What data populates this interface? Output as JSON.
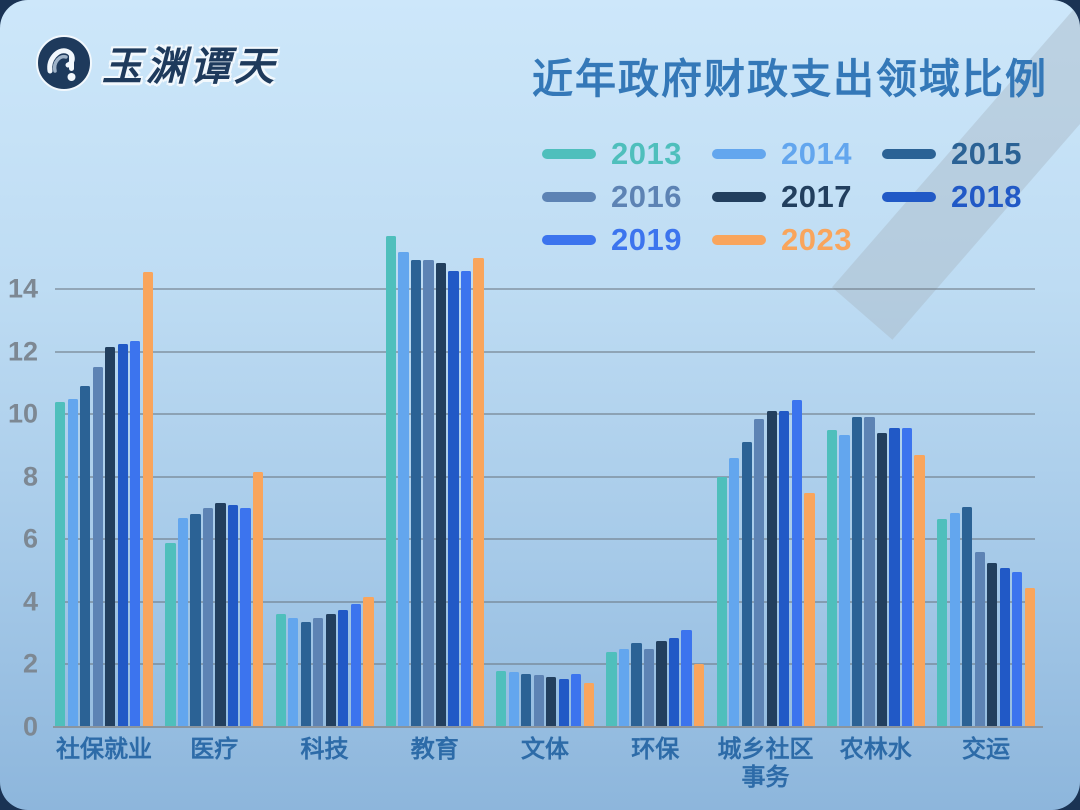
{
  "page": {
    "logo_text": "玉渊谭天",
    "title": "近年政府财政支出领域比例"
  },
  "colors": {
    "outer_background": "#1a3354",
    "card_gradient_top": "#cde7fa",
    "card_gradient_bottom": "#8db6dc",
    "title_text": "#3478b8",
    "category_label_text": "#2d6ba8",
    "y_tick_text": "#7d8893",
    "gridline": "#6e7a85",
    "watermark_band": "#a8b7c6",
    "logo_navy": "#1e3a5c"
  },
  "legend": [
    {
      "label": "2013",
      "color": "#4fbfbc"
    },
    {
      "label": "2014",
      "color": "#63a6ee"
    },
    {
      "label": "2015",
      "color": "#2b6295"
    },
    {
      "label": "2016",
      "color": "#5d83b4"
    },
    {
      "label": "2017",
      "color": "#223f5e"
    },
    {
      "label": "2018",
      "color": "#2159c6"
    },
    {
      "label": "2019",
      "color": "#3c74ee"
    },
    {
      "label": "2023",
      "color": "#f9a55c"
    }
  ],
  "chart_data": {
    "type": "bar",
    "title": "近年政府财政支出领域比例",
    "xlabel": "",
    "ylabel": "",
    "grid": true,
    "legend_position": "top-right",
    "ylim": [
      0,
      15.8
    ],
    "y_ticks": [
      0,
      2,
      4,
      6,
      8,
      10,
      12,
      14
    ],
    "categories": [
      "社保就业",
      "医疗",
      "科技",
      "教育",
      "文体",
      "环保",
      "城乡社区事务",
      "农林水",
      "交运"
    ],
    "series": [
      {
        "name": "2013",
        "color": "#4fbfbc",
        "values": [
          10.4,
          5.9,
          3.6,
          15.7,
          1.8,
          2.4,
          8.0,
          9.5,
          6.65
        ]
      },
      {
        "name": "2014",
        "color": "#63a6ee",
        "values": [
          10.5,
          6.7,
          3.5,
          15.2,
          1.75,
          2.5,
          8.6,
          9.35,
          6.85
        ]
      },
      {
        "name": "2015",
        "color": "#2b6295",
        "values": [
          10.9,
          6.8,
          3.35,
          14.95,
          1.7,
          2.7,
          9.1,
          9.9,
          7.05
        ]
      },
      {
        "name": "2016",
        "color": "#5d83b4",
        "values": [
          11.5,
          7.0,
          3.5,
          14.95,
          1.65,
          2.5,
          9.85,
          9.9,
          5.6
        ]
      },
      {
        "name": "2017",
        "color": "#223f5e",
        "values": [
          12.15,
          7.15,
          3.6,
          14.85,
          1.6,
          2.75,
          10.1,
          9.4,
          5.25
        ]
      },
      {
        "name": "2018",
        "color": "#2159c6",
        "values": [
          12.25,
          7.1,
          3.75,
          14.6,
          1.55,
          2.85,
          10.1,
          9.55,
          5.1
        ]
      },
      {
        "name": "2019",
        "color": "#3c74ee",
        "values": [
          12.35,
          7.0,
          3.95,
          14.6,
          1.7,
          3.1,
          10.45,
          9.55,
          4.95
        ]
      },
      {
        "name": "2023",
        "color": "#f9a55c",
        "values": [
          14.55,
          8.15,
          4.15,
          15.0,
          1.4,
          2.0,
          7.5,
          8.7,
          4.45
        ]
      }
    ]
  }
}
